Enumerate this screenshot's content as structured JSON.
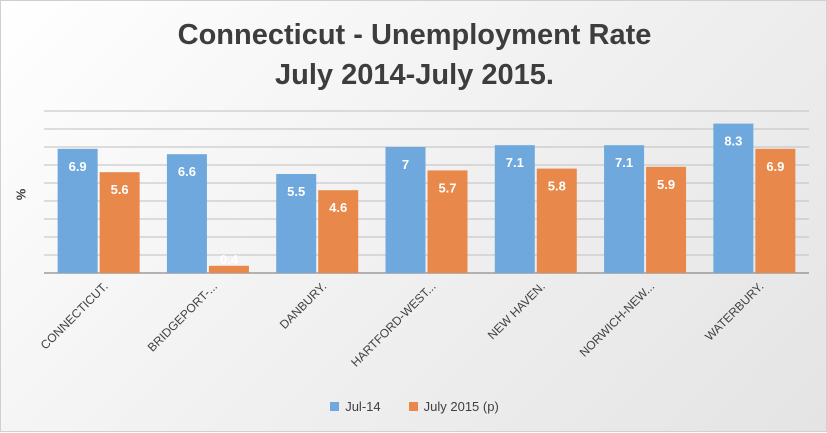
{
  "chart_data": {
    "type": "bar",
    "title": "Connecticut - Unemployment Rate",
    "subtitle": "July 2014-July 2015.",
    "ylabel": "%",
    "xlabel": "",
    "categories": [
      "CONNECTICUT.",
      "BRIDGEPORT-...",
      "DANBURY.",
      "HARTFORD-WEST...",
      "NEW HAVEN.",
      "NORWICH-NEW...",
      "WATERBURY."
    ],
    "series": [
      {
        "name": "Jul-14",
        "values": [
          6.9,
          6.6,
          5.5,
          7,
          7.1,
          7.1,
          8.3
        ],
        "color": "#6fa8dc"
      },
      {
        "name": "July 2015 (p)",
        "values": [
          5.6,
          0.4,
          4.6,
          5.7,
          5.8,
          5.9,
          6.9
        ],
        "color": "#e8884a"
      }
    ],
    "ylim": [
      0,
      9
    ],
    "grid": true,
    "legend_position": "bottom"
  }
}
